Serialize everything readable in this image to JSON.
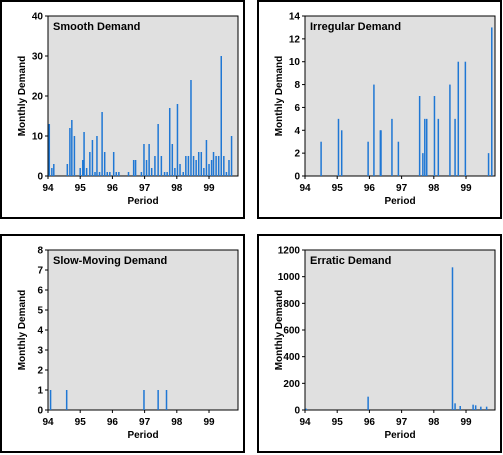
{
  "chart_data": [
    {
      "type": "bar",
      "title": "Smooth Demand",
      "xlabel": "Period",
      "ylabel": "Monthly Demand",
      "ylim": [
        0,
        40
      ],
      "yticks": [
        "0",
        "10",
        "20",
        "30",
        "40"
      ],
      "xlim": [
        94,
        99.9
      ],
      "xticks": [
        "94",
        "95",
        "96",
        "97",
        "98",
        "99"
      ],
      "bar_color": "#1f77d4",
      "plot_background": "#e0e0e0",
      "grid": false,
      "x": [
        94.04,
        94.12,
        94.18,
        94.6,
        94.68,
        94.74,
        94.82,
        95.0,
        95.08,
        95.12,
        95.2,
        95.3,
        95.38,
        95.46,
        95.52,
        95.6,
        95.68,
        95.76,
        95.84,
        95.92,
        96.04,
        96.12,
        96.2,
        96.5,
        96.66,
        96.72,
        96.9,
        96.98,
        97.06,
        97.14,
        97.22,
        97.32,
        97.42,
        97.52,
        97.62,
        97.7,
        97.78,
        97.86,
        97.94,
        98.02,
        98.1,
        98.2,
        98.28,
        98.36,
        98.44,
        98.52,
        98.6,
        98.68,
        98.76,
        98.84,
        98.92,
        99.0,
        99.08,
        99.14,
        99.22,
        99.3,
        99.38,
        99.46,
        99.54,
        99.62,
        99.7
      ],
      "values": [
        13,
        2,
        3,
        3,
        12,
        14,
        10,
        2,
        4,
        11,
        2,
        6,
        9,
        1,
        10,
        1,
        16,
        6,
        1,
        1,
        6,
        1,
        1,
        1,
        4,
        4,
        1,
        8,
        4,
        8,
        2,
        5,
        13,
        5,
        1,
        1,
        17,
        8,
        2,
        18,
        3,
        1,
        5,
        5,
        24,
        5,
        4,
        6,
        6,
        2,
        9,
        3,
        4,
        6,
        5,
        5,
        30,
        5,
        1,
        4,
        10
      ]
    },
    {
      "type": "bar",
      "title": "Irregular Demand",
      "xlabel": "Period",
      "ylabel": "Monthly Demand",
      "ylim": [
        0,
        14
      ],
      "yticks": [
        "0",
        "2",
        "4",
        "6",
        "8",
        "10",
        "12",
        "14"
      ],
      "xlim": [
        94,
        99.9
      ],
      "xticks": [
        "94",
        "95",
        "96",
        "97",
        "98",
        "99"
      ],
      "bar_color": "#1f77d4",
      "plot_background": "#e0e0e0",
      "grid": false,
      "x": [
        94.5,
        95.04,
        95.14,
        95.96,
        96.14,
        96.34,
        96.36,
        96.7,
        96.9,
        97.56,
        97.66,
        97.72,
        97.78,
        98.02,
        98.14,
        98.5,
        98.66,
        98.76,
        98.98,
        99.7,
        99.8
      ],
      "values": [
        3,
        5,
        4,
        3,
        8,
        4,
        4,
        5,
        3,
        7,
        2,
        5,
        5,
        7,
        5,
        8,
        5,
        10,
        10,
        2,
        13
      ]
    },
    {
      "type": "bar",
      "title": "Slow-Moving Demand",
      "xlabel": "Period",
      "ylabel": "Monthly Demand",
      "ylim": [
        0,
        8
      ],
      "yticks": [
        "0",
        "1",
        "2",
        "3",
        "4",
        "5",
        "6",
        "7",
        "8"
      ],
      "xlim": [
        94,
        99.9
      ],
      "xticks": [
        "94",
        "95",
        "96",
        "97",
        "98",
        "99"
      ],
      "bar_color": "#1f77d4",
      "plot_background": "#e0e0e0",
      "grid": false,
      "x": [
        94.08,
        94.58,
        96.98,
        97.42,
        97.68
      ],
      "values": [
        1,
        1,
        1,
        1,
        1
      ]
    },
    {
      "type": "bar",
      "title": "Erratic Demand",
      "xlabel": "Period",
      "ylabel": "Monthly Demand",
      "ylim": [
        0,
        1200
      ],
      "yticks": [
        "0",
        "200",
        "400",
        "600",
        "800",
        "1000",
        "1200"
      ],
      "xlim": [
        94,
        99.9
      ],
      "xticks": [
        "94",
        "95",
        "96",
        "97",
        "98",
        "99"
      ],
      "bar_color": "#1f77d4",
      "plot_background": "#e0e0e0",
      "grid": false,
      "x": [
        94.04,
        95.96,
        98.58,
        98.66,
        98.82,
        99.22,
        99.3,
        99.46,
        99.64
      ],
      "values": [
        10,
        100,
        1070,
        50,
        30,
        40,
        35,
        25,
        25
      ]
    }
  ]
}
